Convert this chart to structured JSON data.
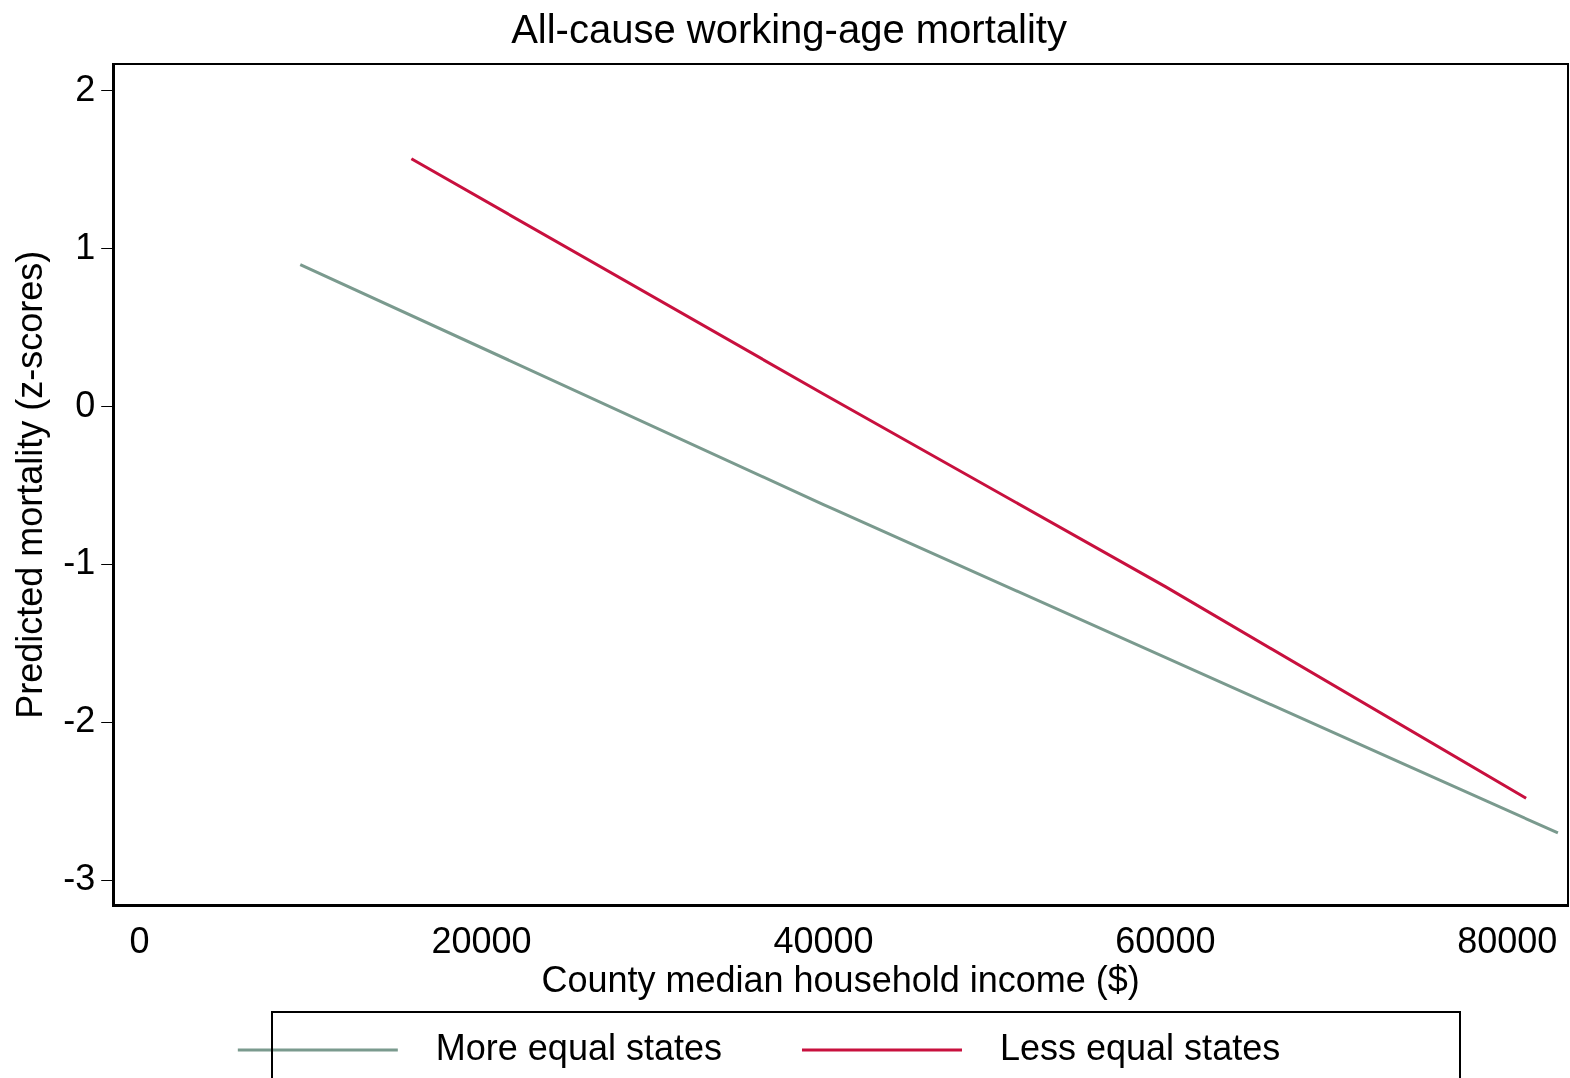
{
  "chart_data": {
    "type": "line",
    "title": "All-cause working-age mortality",
    "xlabel": "County median household income ($)",
    "ylabel": "Predicted mortality (z-scores)",
    "xlim": [
      -1540,
      83550
    ],
    "xticks": [
      0,
      20000,
      40000,
      60000,
      80000
    ],
    "ylim": [
      -3.16,
      2.17
    ],
    "yticks": [
      -3,
      -2,
      -1,
      0,
      1,
      2
    ],
    "series": [
      {
        "name": "More equal states",
        "color": "#7a9a8e",
        "x": [
          9400,
          40000,
          82960
        ],
        "values": [
          0.9,
          -0.62,
          -2.7
        ]
      },
      {
        "name": "Less equal states",
        "color": "#c8103e",
        "x": [
          15900,
          40000,
          60000,
          81100
        ],
        "values": [
          1.57,
          0.08,
          -1.14,
          -2.48
        ]
      }
    ],
    "legend": "bottom",
    "grid": false,
    "marker": "none"
  }
}
